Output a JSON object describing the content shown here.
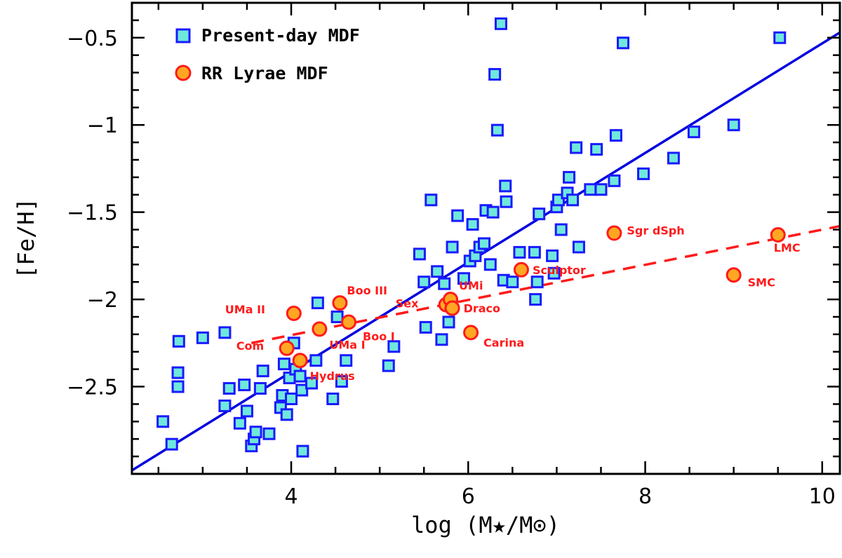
{
  "chart_data": {
    "type": "scatter",
    "xlabel": "log (M★/M⊙)",
    "ylabel": "[Fe/H]",
    "xlim": [
      2.2,
      10.2
    ],
    "ylim": [
      -3.0,
      -0.3
    ],
    "x_ticks": [
      4,
      6,
      8,
      10
    ],
    "x_tick_labels": [
      "4",
      "6",
      "8",
      "10"
    ],
    "y_ticks": [
      -2.5,
      -2,
      -1.5,
      -1,
      -0.5
    ],
    "y_tick_labels": [
      "−2.5",
      "−2",
      "−1.5",
      "−1",
      "−0.5"
    ],
    "legend_position": "top-left",
    "legend": [
      {
        "name": "Present-day MDF",
        "marker": "square"
      },
      {
        "name": "RR Lyrae MDF",
        "marker": "circle"
      }
    ],
    "colors": {
      "square_fill": "#6fe8dc",
      "square_edge": "#1a1aff",
      "circle_fill": "#ffa722",
      "circle_edge": "#ff1a1a",
      "fit_line": "#0000e0",
      "rr_fit_line": "#ff1a1a"
    },
    "series": [
      {
        "name": "Present-day MDF",
        "marker": "square",
        "points": [
          [
            2.55,
            -2.7
          ],
          [
            2.65,
            -2.83
          ],
          [
            2.72,
            -2.5
          ],
          [
            2.72,
            -2.42
          ],
          [
            2.73,
            -2.24
          ],
          [
            3.0,
            -2.22
          ],
          [
            3.25,
            -2.19
          ],
          [
            3.25,
            -2.61
          ],
          [
            3.3,
            -2.51
          ],
          [
            3.42,
            -2.71
          ],
          [
            3.47,
            -2.49
          ],
          [
            3.5,
            -2.64
          ],
          [
            3.55,
            -2.84
          ],
          [
            3.58,
            -2.8
          ],
          [
            3.6,
            -2.76
          ],
          [
            3.65,
            -2.51
          ],
          [
            3.68,
            -2.41
          ],
          [
            3.75,
            -2.77
          ],
          [
            3.88,
            -2.62
          ],
          [
            3.9,
            -2.55
          ],
          [
            3.92,
            -2.37
          ],
          [
            3.95,
            -2.66
          ],
          [
            3.98,
            -2.45
          ],
          [
            4.0,
            -2.57
          ],
          [
            4.03,
            -2.25
          ],
          [
            4.05,
            -2.4
          ],
          [
            4.1,
            -2.44
          ],
          [
            4.12,
            -2.52
          ],
          [
            4.13,
            -2.87
          ],
          [
            4.23,
            -2.48
          ],
          [
            4.28,
            -2.35
          ],
          [
            4.3,
            -2.02
          ],
          [
            4.47,
            -2.57
          ],
          [
            4.52,
            -2.1
          ],
          [
            4.57,
            -2.47
          ],
          [
            4.62,
            -2.35
          ],
          [
            5.1,
            -2.38
          ],
          [
            5.16,
            -2.27
          ],
          [
            5.45,
            -1.74
          ],
          [
            5.5,
            -1.9
          ],
          [
            5.52,
            -2.16
          ],
          [
            5.58,
            -1.43
          ],
          [
            5.65,
            -1.84
          ],
          [
            5.7,
            -2.23
          ],
          [
            5.73,
            -1.91
          ],
          [
            5.78,
            -2.13
          ],
          [
            5.82,
            -1.7
          ],
          [
            5.88,
            -1.52
          ],
          [
            5.95,
            -1.88
          ],
          [
            6.02,
            -1.78
          ],
          [
            6.05,
            -1.57
          ],
          [
            6.08,
            -1.75
          ],
          [
            6.13,
            -1.7
          ],
          [
            6.18,
            -1.68
          ],
          [
            6.2,
            -1.49
          ],
          [
            6.25,
            -1.8
          ],
          [
            6.28,
            -1.5
          ],
          [
            6.3,
            -0.71
          ],
          [
            6.33,
            -1.03
          ],
          [
            6.37,
            -0.42
          ],
          [
            6.4,
            -1.89
          ],
          [
            6.42,
            -1.35
          ],
          [
            6.43,
            -1.44
          ],
          [
            6.5,
            -1.9
          ],
          [
            6.58,
            -1.73
          ],
          [
            6.75,
            -1.73
          ],
          [
            6.76,
            -2.0
          ],
          [
            6.78,
            -1.9
          ],
          [
            6.8,
            -1.51
          ],
          [
            6.95,
            -1.75
          ],
          [
            6.97,
            -1.85
          ],
          [
            7.0,
            -1.47
          ],
          [
            7.02,
            -1.43
          ],
          [
            7.05,
            -1.6
          ],
          [
            7.12,
            -1.39
          ],
          [
            7.14,
            -1.3
          ],
          [
            7.18,
            -1.43
          ],
          [
            7.22,
            -1.13
          ],
          [
            7.25,
            -1.7
          ],
          [
            7.38,
            -1.37
          ],
          [
            7.45,
            -1.14
          ],
          [
            7.5,
            -1.37
          ],
          [
            7.65,
            -1.32
          ],
          [
            7.67,
            -1.06
          ],
          [
            7.75,
            -0.53
          ],
          [
            7.98,
            -1.28
          ],
          [
            8.32,
            -1.19
          ],
          [
            8.55,
            -1.04
          ],
          [
            9.0,
            -1.0
          ],
          [
            9.52,
            -0.5
          ]
        ]
      },
      {
        "name": "RR Lyrae MDF",
        "marker": "circle",
        "points": [
          {
            "x": 4.03,
            "y": -2.08,
            "label": "UMa II"
          },
          {
            "x": 4.55,
            "y": -2.02,
            "label": "Boo III"
          },
          {
            "x": 4.32,
            "y": -2.17,
            "label": "UMa I"
          },
          {
            "x": 4.65,
            "y": -2.13,
            "label": "Boo I"
          },
          {
            "x": 3.95,
            "y": -2.28,
            "label": "Com"
          },
          {
            "x": 4.1,
            "y": -2.35,
            "label": "Hydrus"
          },
          {
            "x": 5.75,
            "y": -2.03,
            "label": "Sex"
          },
          {
            "x": 5.8,
            "y": -2.0,
            "label": "UMi"
          },
          {
            "x": 5.82,
            "y": -2.05,
            "label": "Draco"
          },
          {
            "x": 6.03,
            "y": -2.19,
            "label": "Carina"
          },
          {
            "x": 6.6,
            "y": -1.83,
            "label": "Sculptor"
          },
          {
            "x": 7.65,
            "y": -1.62,
            "label": "Sgr dSph"
          },
          {
            "x": 9.0,
            "y": -1.86,
            "label": "SMC"
          },
          {
            "x": 9.5,
            "y": -1.63,
            "label": "LMC"
          }
        ]
      }
    ],
    "fit_lines": [
      {
        "name": "Present-day MDF fit",
        "style": "solid",
        "points": [
          [
            2.2,
            -2.98
          ],
          [
            10.2,
            -0.47
          ]
        ]
      },
      {
        "name": "RR Lyrae MDF fit",
        "style": "dashed",
        "points": [
          [
            3.55,
            -2.25
          ],
          [
            10.2,
            -1.58
          ]
        ]
      }
    ]
  }
}
